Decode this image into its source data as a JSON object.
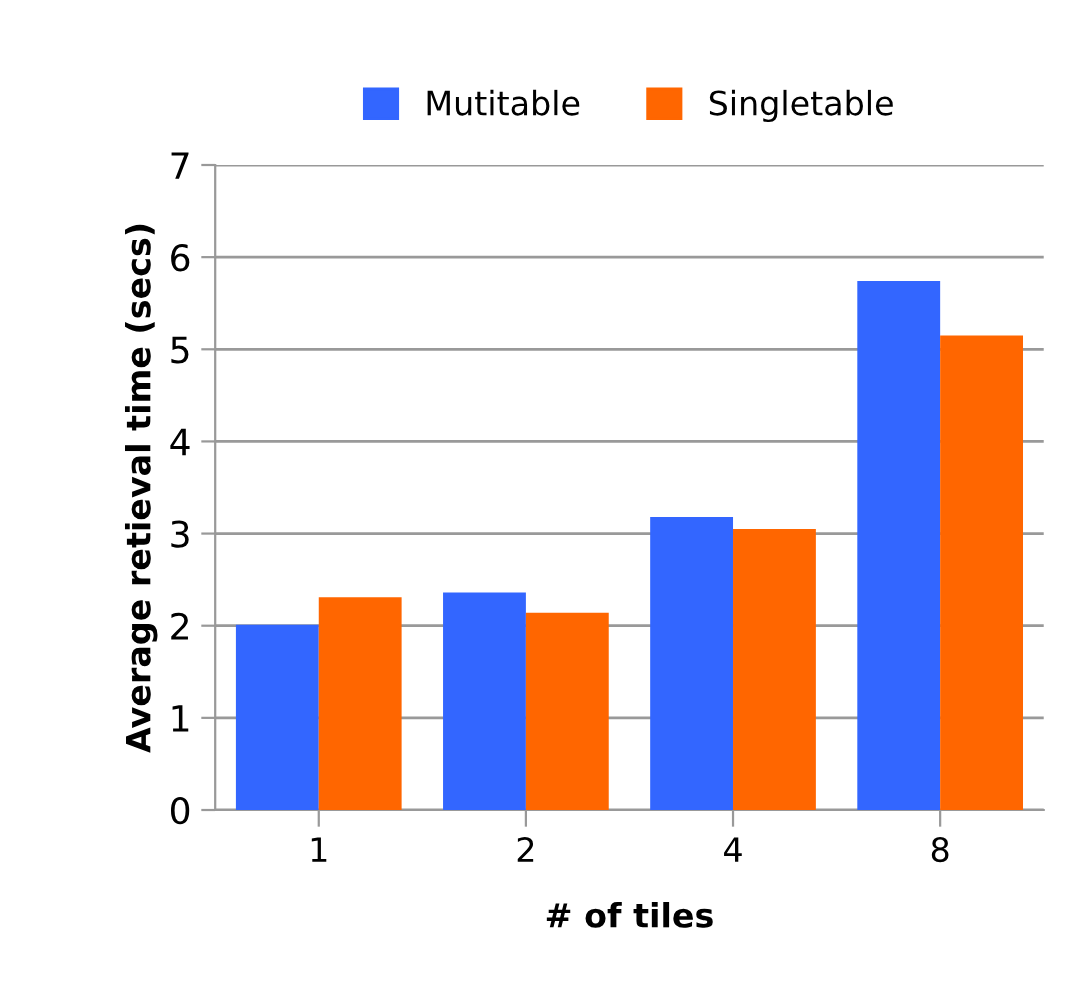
{
  "chart_data": {
    "type": "bar",
    "xlabel": "# of tiles",
    "ylabel": "Average retieval time (secs)",
    "categories": [
      "1",
      "2",
      "4",
      "8"
    ],
    "series": [
      {
        "name": "Mutitable",
        "color": "#3366ff",
        "values": [
          2.01,
          2.36,
          3.18,
          5.74
        ]
      },
      {
        "name": "Singletable",
        "color": "#ff6600",
        "values": [
          2.31,
          2.14,
          3.05,
          5.15
        ]
      }
    ],
    "ylim": [
      0,
      7
    ],
    "yticks": [
      0,
      1,
      2,
      3,
      4,
      5,
      6,
      7
    ],
    "grid": "y",
    "legend": "top"
  }
}
